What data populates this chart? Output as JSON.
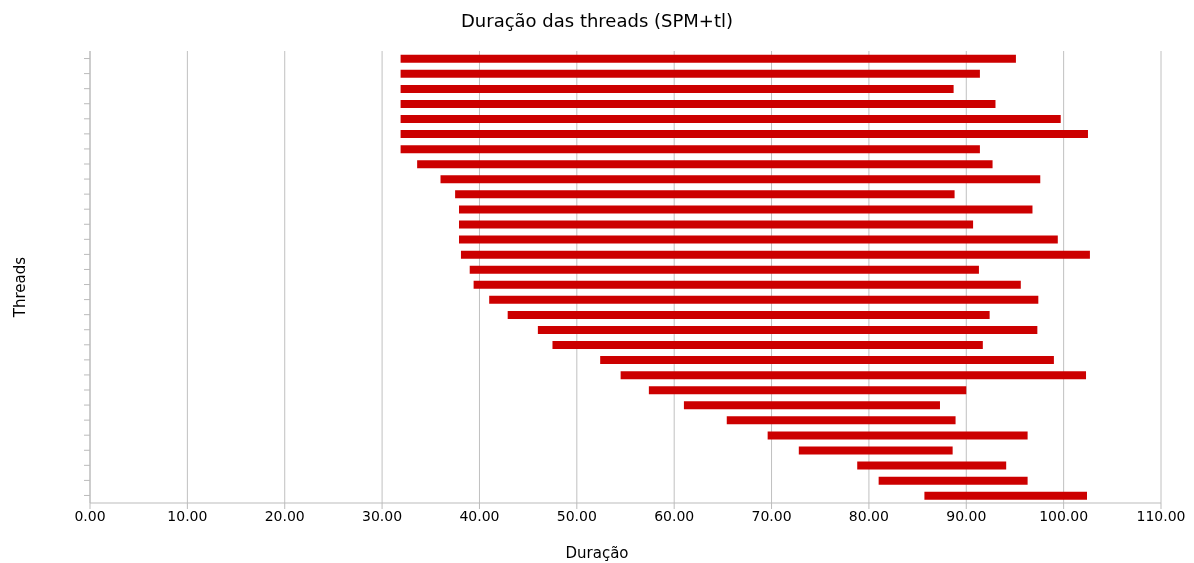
{
  "chart_data": {
    "type": "bar",
    "orientation": "horizontal",
    "title": "Duração das threads (SPM+tl)",
    "xlabel": "Duração",
    "ylabel": "Threads",
    "categories": [
      null,
      null,
      null,
      null,
      null,
      null,
      null,
      null,
      null,
      null,
      null,
      null,
      null,
      null,
      null,
      null,
      null,
      null,
      null,
      null,
      null,
      null,
      null,
      null,
      null,
      null,
      null,
      null,
      null,
      null
    ],
    "base": [
      31.9,
      31.9,
      31.9,
      31.9,
      31.9,
      31.9,
      31.9,
      33.6,
      36.0,
      37.5,
      37.9,
      37.9,
      37.9,
      38.1,
      39.0,
      39.4,
      41.0,
      42.9,
      46.0,
      47.5,
      52.4,
      54.5,
      57.4,
      61.0,
      65.4,
      69.6,
      72.8,
      78.8,
      81.0,
      85.7
    ],
    "values": [
      63.2,
      59.5,
      56.8,
      61.1,
      67.8,
      70.6,
      59.5,
      59.1,
      61.6,
      51.3,
      58.9,
      52.8,
      61.5,
      64.6,
      52.3,
      56.2,
      56.4,
      49.5,
      51.3,
      44.2,
      46.6,
      47.8,
      32.6,
      26.3,
      23.5,
      26.7,
      15.8,
      15.3,
      15.3,
      16.7
    ],
    "color": "#cc0000",
    "xlim": [
      0,
      110
    ],
    "xticks": [
      {
        "value": 0,
        "label": "0.00"
      },
      {
        "value": 10,
        "label": "10.00"
      },
      {
        "value": 20,
        "label": "20.00"
      },
      {
        "value": 30,
        "label": "30.00"
      },
      {
        "value": 40,
        "label": "40.00"
      },
      {
        "value": 50,
        "label": "50.00"
      },
      {
        "value": 60,
        "label": "60.00"
      },
      {
        "value": 70,
        "label": "70.00"
      },
      {
        "value": 80,
        "label": "80.00"
      },
      {
        "value": 90,
        "label": "90.00"
      },
      {
        "value": 100,
        "label": "100.00"
      },
      {
        "value": 110,
        "label": "110.00"
      }
    ],
    "grid": "x",
    "tick_labels": "x"
  }
}
